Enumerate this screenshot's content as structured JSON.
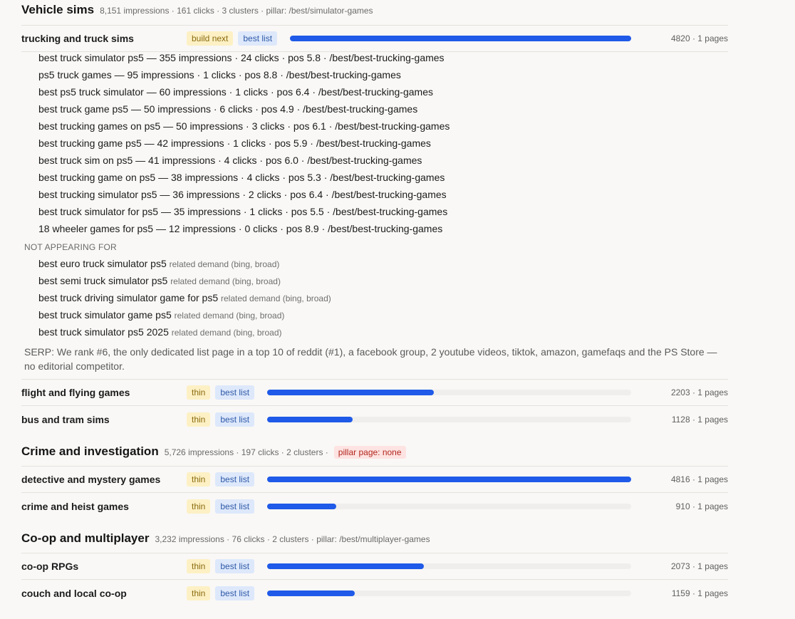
{
  "sections": [
    {
      "title": "Vehicle sims",
      "meta": "8,151 impressions · 161 clicks · 3 clusters · pillar: /best/simulator-games",
      "clusters": [
        {
          "name": "trucking and truck sims",
          "tag1": "build next",
          "tag2": "best list",
          "bar_fraction": 1.0,
          "count": "4820 · 1 pages"
        },
        {
          "name": "flight and flying games",
          "tag1": "thin",
          "tag2": "best list",
          "bar_fraction": 0.457,
          "count": "2203 · 1 pages"
        },
        {
          "name": "bus and tram sims",
          "tag1": "thin",
          "tag2": "best list",
          "bar_fraction": 0.234,
          "count": "1128 · 1 pages"
        }
      ],
      "queries": [
        "best truck simulator ps5 — 355 impressions · 24 clicks · pos 5.8 · /best/best-trucking-games",
        "ps5 truck games — 95 impressions · 1 clicks · pos 8.8 · /best/best-trucking-games",
        "best ps5 truck simulator — 60 impressions · 1 clicks · pos 6.4 · /best/best-trucking-games",
        "best truck game ps5 — 50 impressions · 6 clicks · pos 4.9 · /best/best-trucking-games",
        "best trucking games on ps5 — 50 impressions · 3 clicks · pos 6.1 · /best/best-trucking-games",
        "best trucking game ps5 — 42 impressions · 1 clicks · pos 5.9 · /best/best-trucking-games",
        "best truck sim on ps5 — 41 impressions · 4 clicks · pos 6.0 · /best/best-trucking-games",
        "best trucking game on ps5 — 38 impressions · 4 clicks · pos 5.3 · /best/best-trucking-games",
        "best trucking simulator ps5 — 36 impressions · 2 clicks · pos 6.4 · /best/best-trucking-games",
        "best truck simulator for ps5 — 35 impressions · 1 clicks · pos 5.5 · /best/best-trucking-games",
        "18 wheeler games for ps5 — 12 impressions · 0 clicks · pos 8.9 · /best/best-trucking-games"
      ],
      "not_appearing_label": "NOT APPEARING FOR",
      "not_appearing": [
        {
          "q": "best euro truck simulator ps5",
          "note": "related demand (bing, broad)"
        },
        {
          "q": "best semi truck simulator ps5",
          "note": "related demand (bing, broad)"
        },
        {
          "q": "best truck driving simulator game for ps5",
          "note": "related demand (bing, broad)"
        },
        {
          "q": "best truck simulator game ps5",
          "note": "related demand (bing, broad)"
        },
        {
          "q": "best truck simulator ps5 2025",
          "note": "related demand (bing, broad)"
        }
      ],
      "serp": "SERP: We rank #6, the only dedicated list page in a top 10 of reddit (#1), a facebook group, 2 youtube videos, tiktok, amazon, gamefaqs and the PS Store — no editorial competitor."
    },
    {
      "title": "Crime and investigation",
      "meta": "5,726 impressions · 197 clicks · 2 clusters ·",
      "pill": "pillar page: none",
      "clusters": [
        {
          "name": "detective and mystery games",
          "tag1": "thin",
          "tag2": "best list",
          "bar_fraction": 1.0,
          "count": "4816 · 1 pages"
        },
        {
          "name": "crime and heist games",
          "tag1": "thin",
          "tag2": "best list",
          "bar_fraction": 0.189,
          "count": "910 · 1 pages"
        }
      ]
    },
    {
      "title": "Co-op and multiplayer",
      "meta": "3,232 impressions · 76 clicks · 2 clusters · pillar: /best/multiplayer-games",
      "clusters": [
        {
          "name": "co-op RPGs",
          "tag1": "thin",
          "tag2": "best list",
          "bar_fraction": 0.43,
          "count": "2073 · 1 pages"
        },
        {
          "name": "couch and local co-op",
          "tag1": "thin",
          "tag2": "best list",
          "bar_fraction": 0.24,
          "count": "1159 · 1 pages"
        }
      ]
    }
  ],
  "colors": {
    "bar": "#1f5ae8",
    "tag_yellow_bg": "#fdf0c4",
    "tag_blue_bg": "#dde8fb",
    "pill_red_bg": "#fde3e1"
  }
}
